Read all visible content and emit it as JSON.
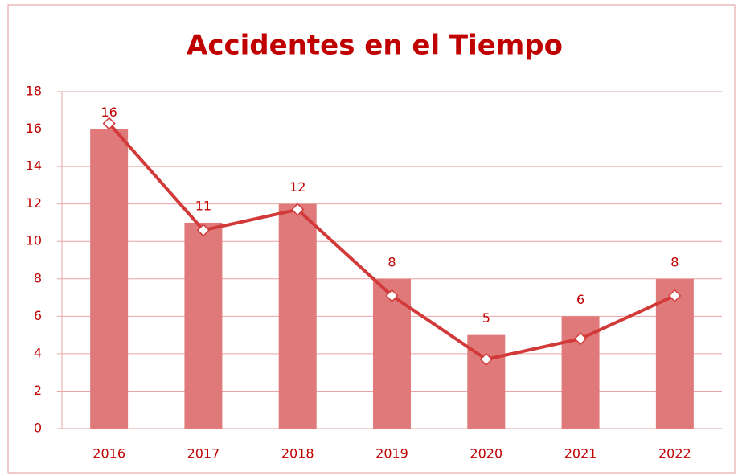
{
  "chart_data": {
    "type": "bar_line",
    "title": "Accidentes en el Tiempo",
    "categories": [
      "2016",
      "2017",
      "2018",
      "2019",
      "2020",
      "2021",
      "2022"
    ],
    "series": [
      {
        "type": "bar",
        "color": "#e07a7a",
        "values": [
          16,
          11,
          12,
          8,
          5,
          6,
          8
        ]
      },
      {
        "type": "line",
        "color": "#d23a3a",
        "values": [
          16.3,
          10.6,
          11.7,
          7.1,
          3.7,
          4.8,
          7.1
        ]
      }
    ],
    "ylim": [
      0,
      18
    ],
    "yticks": [
      0,
      2,
      4,
      6,
      8,
      10,
      12,
      14,
      16,
      18
    ],
    "grid": true
  }
}
